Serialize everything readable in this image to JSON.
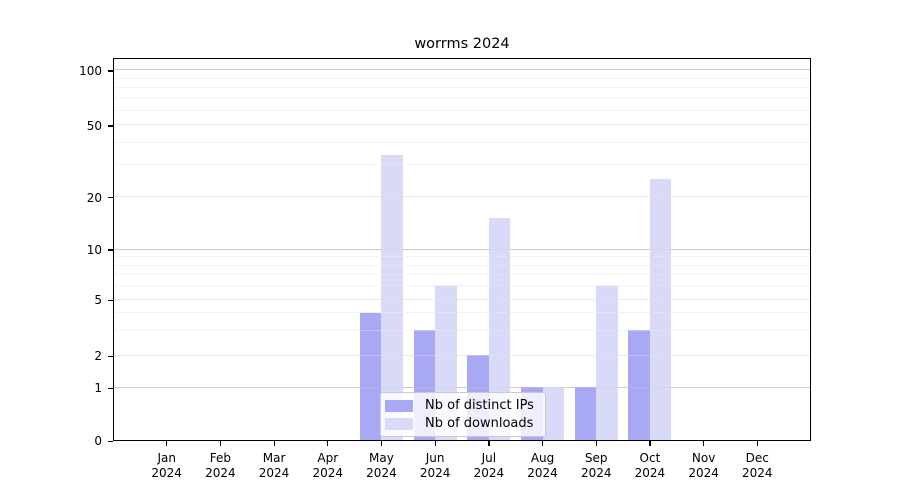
{
  "title": "worrms 2024",
  "chart_data": {
    "type": "bar",
    "title": "worrms 2024",
    "categories": [
      {
        "month": "Jan",
        "year": "2024"
      },
      {
        "month": "Feb",
        "year": "2024"
      },
      {
        "month": "Mar",
        "year": "2024"
      },
      {
        "month": "Apr",
        "year": "2024"
      },
      {
        "month": "May",
        "year": "2024"
      },
      {
        "month": "Jun",
        "year": "2024"
      },
      {
        "month": "Jul",
        "year": "2024"
      },
      {
        "month": "Aug",
        "year": "2024"
      },
      {
        "month": "Sep",
        "year": "2024"
      },
      {
        "month": "Oct",
        "year": "2024"
      },
      {
        "month": "Nov",
        "year": "2024"
      },
      {
        "month": "Dec",
        "year": "2024"
      }
    ],
    "series": [
      {
        "name": "Nb of distinct IPs",
        "color": "#a8a8f5",
        "values": [
          0,
          0,
          0,
          0,
          4,
          3,
          2,
          1,
          1,
          3,
          0,
          0
        ]
      },
      {
        "name": "Nb of downloads",
        "color": "#d9d9f8",
        "values": [
          0,
          0,
          0,
          0,
          34,
          6,
          15,
          1,
          6,
          25,
          0,
          0
        ]
      }
    ],
    "xlabel": "",
    "ylabel": "",
    "y_axis": {
      "scale": "log",
      "tick_labels": [
        "0",
        "1",
        "2",
        "5",
        "10",
        "20",
        "50",
        "100"
      ],
      "tick_values": [
        0,
        1,
        2,
        5,
        10,
        20,
        50,
        100
      ],
      "major_gridlines": [
        1,
        10,
        100
      ],
      "mid_gridlines": [
        2,
        5,
        20,
        50
      ],
      "minor_gridlines": [
        3,
        4,
        6,
        7,
        8,
        9,
        30,
        40,
        60,
        70,
        80,
        90
      ],
      "ylim": [
        0,
        118
      ]
    },
    "grid": true,
    "legend_position": "lower-center-inside",
    "colors": {
      "bar_ips": "#a8a8f5",
      "bar_downloads": "#d9d9f8",
      "grid_major": "#cdcdcd",
      "grid_mid": "#e9e9e9",
      "grid_minor": "#f3f3f3",
      "axis": "#000000"
    }
  }
}
